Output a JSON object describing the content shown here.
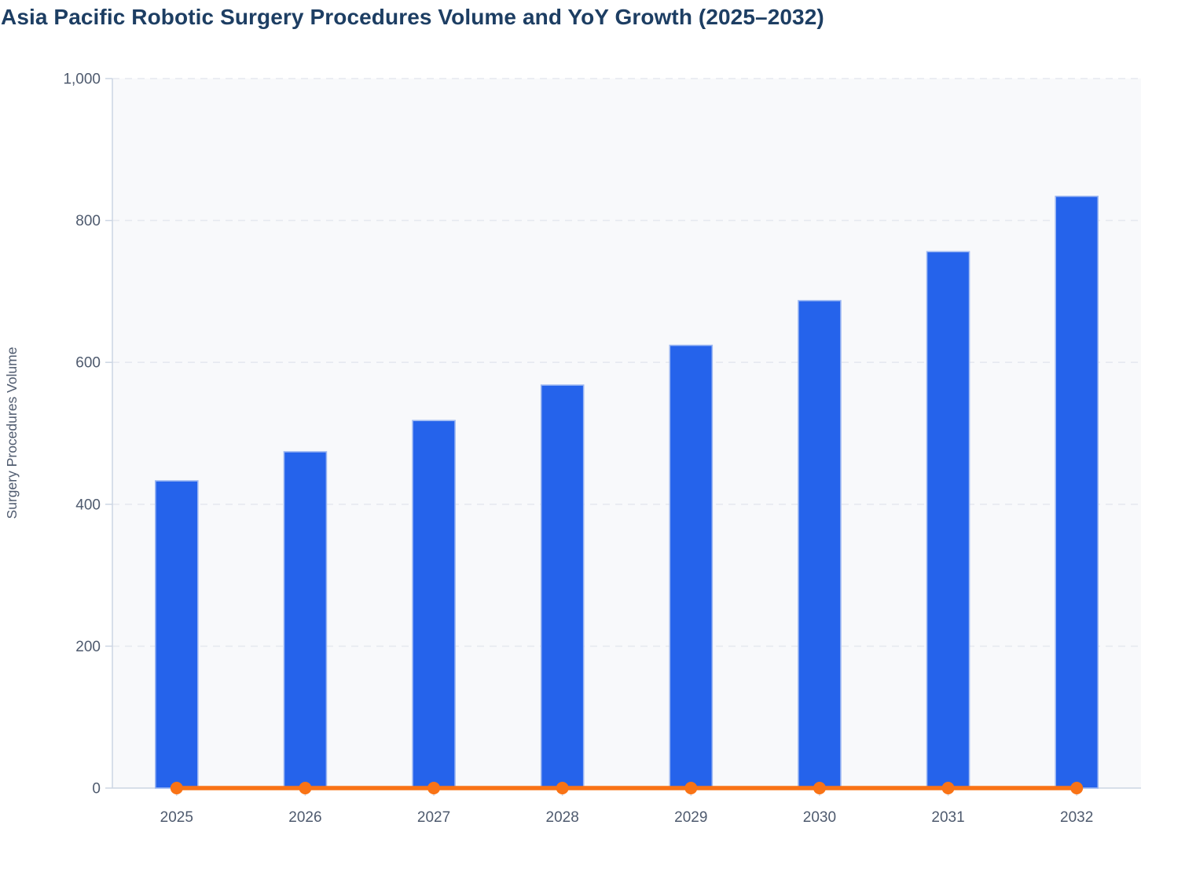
{
  "page": {
    "title": "Asia Pacific Robotic Surgery Procedures Volume and YoY Growth (2025–2032)"
  },
  "chart_data": {
    "type": "bar",
    "title": "Asia Pacific Robotic Surgery Procedures Volume and YoY Growth (2025–2032)",
    "categories": [
      "2025",
      "2026",
      "2027",
      "2028",
      "2029",
      "2030",
      "2031",
      "2032"
    ],
    "series": [
      {
        "name": "Surgery Procedures Volume",
        "kind": "bar",
        "color": "#2563eb",
        "border_color": "#9cb7f2",
        "values": [
          433,
          474,
          518,
          568,
          624,
          687,
          756,
          834
        ]
      },
      {
        "name": "YoY Growth",
        "kind": "line",
        "color": "#f97316",
        "marker": "circle",
        "values": [
          0,
          0,
          0,
          0,
          0,
          0,
          0,
          0
        ],
        "note": "line with circular markers renders flat along the zero baseline; YoY growth percentages are too small to resolve against the 0–1,000 volume axis"
      }
    ],
    "xlabel": "",
    "ylabel": "Surgery Procedures Volume",
    "ylim": [
      0,
      1000
    ],
    "ytick_values": [
      0,
      200,
      400,
      600,
      800,
      1000
    ],
    "ytick_labels": [
      "0",
      "200",
      "400",
      "600",
      "800",
      "1,000"
    ],
    "grid": "horizontal-dashed",
    "legend_position": "none",
    "colors": {
      "plot_background": "#f8f9fb",
      "grid_line": "#e6e9f0",
      "axis_line": "#ccd6e3",
      "tick_mark": "#ccd6e3",
      "tick_label": "#4e5a6e",
      "title_text": "#1d3e63"
    }
  }
}
